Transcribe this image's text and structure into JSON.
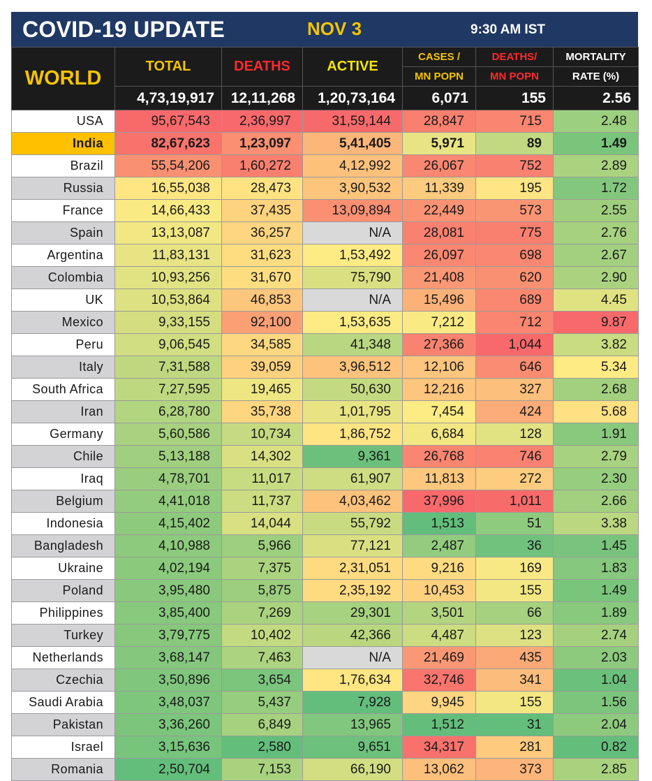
{
  "header": {
    "title": "COVID-19 UPDATE",
    "date": "NOV 3",
    "time": "9:30 AM IST"
  },
  "columns": {
    "region": "WORLD",
    "total": "TOTAL",
    "deaths": "DEATHS",
    "active": "ACTIVE",
    "cases_per_mn_1": "CASES /",
    "cases_per_mn_2": "MN POPN",
    "deaths_per_mn_1": "DEATHS/",
    "deaths_per_mn_2": "MN POPN",
    "mortality_1": "MORTALITY",
    "mortality_2": "RATE (%)"
  },
  "colors": {
    "banner": "#1f3864",
    "accent_yellow": "#f5c400",
    "accent_red": "#ff2a2a",
    "header_bg": "#1b1b1b",
    "highlight_row": "#ffc000",
    "na_cell": "#d9d9d9",
    "scale_red": "#f8696b",
    "scale_yellow": "#ffeb84",
    "scale_green": "#63be7b"
  },
  "chart_data": {
    "type": "table",
    "title": "COVID-19 UPDATE",
    "columns": [
      "TOTAL",
      "DEATHS",
      "ACTIVE",
      "CASES / MN POPN",
      "DEATHS/ MN POPN",
      "MORTALITY RATE (%)"
    ],
    "world_totals": [
      "4,73,19,917",
      "12,11,268",
      "1,20,73,164",
      "6,071",
      "155",
      "2.56"
    ],
    "highlight_country": "India",
    "rows": [
      {
        "country": "USA",
        "cells": [
          "95,67,543",
          "2,36,997",
          "31,59,144",
          "28,847",
          "715",
          "2.48"
        ]
      },
      {
        "country": "India",
        "cells": [
          "82,67,623",
          "1,23,097",
          "5,41,405",
          "5,971",
          "89",
          "1.49"
        ]
      },
      {
        "country": "Brazil",
        "cells": [
          "55,54,206",
          "1,60,272",
          "4,12,992",
          "26,067",
          "752",
          "2.89"
        ]
      },
      {
        "country": "Russia",
        "cells": [
          "16,55,038",
          "28,473",
          "3,90,532",
          "11,339",
          "195",
          "1.72"
        ]
      },
      {
        "country": "France",
        "cells": [
          "14,66,433",
          "37,435",
          "13,09,894",
          "22,449",
          "573",
          "2.55"
        ]
      },
      {
        "country": "Spain",
        "cells": [
          "13,13,087",
          "36,257",
          "N/A",
          "28,081",
          "775",
          "2.76"
        ]
      },
      {
        "country": "Argentina",
        "cells": [
          "11,83,131",
          "31,623",
          "1,53,492",
          "26,097",
          "698",
          "2.67"
        ]
      },
      {
        "country": "Colombia",
        "cells": [
          "10,93,256",
          "31,670",
          "75,790",
          "21,408",
          "620",
          "2.90"
        ]
      },
      {
        "country": "UK",
        "cells": [
          "10,53,864",
          "46,853",
          "N/A",
          "15,496",
          "689",
          "4.45"
        ]
      },
      {
        "country": "Mexico",
        "cells": [
          "9,33,155",
          "92,100",
          "1,53,635",
          "7,212",
          "712",
          "9.87"
        ]
      },
      {
        "country": "Peru",
        "cells": [
          "9,06,545",
          "34,585",
          "41,348",
          "27,366",
          "1,044",
          "3.82"
        ]
      },
      {
        "country": "Italy",
        "cells": [
          "7,31,588",
          "39,059",
          "3,96,512",
          "12,106",
          "646",
          "5.34"
        ]
      },
      {
        "country": "South Africa",
        "cells": [
          "7,27,595",
          "19,465",
          "50,630",
          "12,216",
          "327",
          "2.68"
        ]
      },
      {
        "country": "Iran",
        "cells": [
          "6,28,780",
          "35,738",
          "1,01,795",
          "7,454",
          "424",
          "5.68"
        ]
      },
      {
        "country": "Germany",
        "cells": [
          "5,60,586",
          "10,734",
          "1,86,752",
          "6,684",
          "128",
          "1.91"
        ]
      },
      {
        "country": "Chile",
        "cells": [
          "5,13,188",
          "14,302",
          "9,361",
          "26,768",
          "746",
          "2.79"
        ]
      },
      {
        "country": "Iraq",
        "cells": [
          "4,78,701",
          "11,017",
          "61,907",
          "11,813",
          "272",
          "2.30"
        ]
      },
      {
        "country": "Belgium",
        "cells": [
          "4,41,018",
          "11,737",
          "4,03,462",
          "37,996",
          "1,011",
          "2.66"
        ]
      },
      {
        "country": "Indonesia",
        "cells": [
          "4,15,402",
          "14,044",
          "55,792",
          "1,513",
          "51",
          "3.38"
        ]
      },
      {
        "country": "Bangladesh",
        "cells": [
          "4,10,988",
          "5,966",
          "77,121",
          "2,487",
          "36",
          "1.45"
        ]
      },
      {
        "country": "Ukraine",
        "cells": [
          "4,02,194",
          "7,375",
          "2,31,051",
          "9,216",
          "169",
          "1.83"
        ]
      },
      {
        "country": "Poland",
        "cells": [
          "3,95,480",
          "5,875",
          "2,35,192",
          "10,453",
          "155",
          "1.49"
        ]
      },
      {
        "country": "Philippines",
        "cells": [
          "3,85,400",
          "7,269",
          "29,301",
          "3,501",
          "66",
          "1.89"
        ]
      },
      {
        "country": "Turkey",
        "cells": [
          "3,79,775",
          "10,402",
          "42,366",
          "4,487",
          "123",
          "2.74"
        ]
      },
      {
        "country": "Netherlands",
        "cells": [
          "3,68,147",
          "7,463",
          "N/A",
          "21,469",
          "435",
          "2.03"
        ]
      },
      {
        "country": "Czechia",
        "cells": [
          "3,50,896",
          "3,654",
          "1,76,634",
          "32,746",
          "341",
          "1.04"
        ]
      },
      {
        "country": "Saudi Arabia",
        "cells": [
          "3,48,037",
          "5,437",
          "7,928",
          "9,945",
          "155",
          "1.56"
        ]
      },
      {
        "country": "Pakistan",
        "cells": [
          "3,36,260",
          "6,849",
          "13,965",
          "1,512",
          "31",
          "2.04"
        ]
      },
      {
        "country": "Israel",
        "cells": [
          "3,15,636",
          "2,580",
          "9,651",
          "34,317",
          "281",
          "0.82"
        ]
      },
      {
        "country": "Romania",
        "cells": [
          "2,50,704",
          "7,153",
          "66,190",
          "13,062",
          "373",
          "2.85"
        ]
      }
    ]
  }
}
